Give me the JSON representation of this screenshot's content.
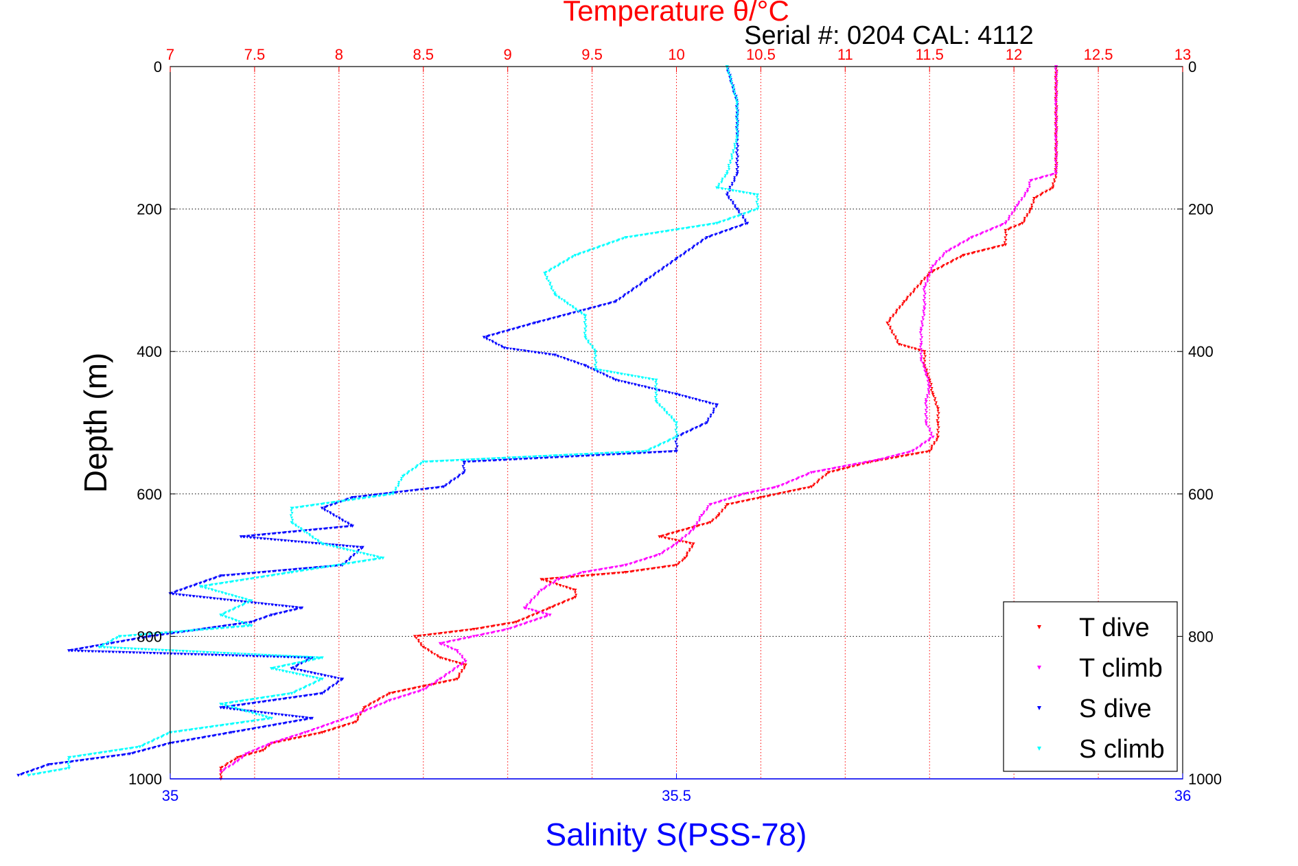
{
  "chart_data": {
    "type": "scatter",
    "title": "Temperature θ/°C",
    "subtitle": "Serial #: 0204  CAL: 4112",
    "xlabel_top": "Temperature θ/°C",
    "xlabel_bottom": "Salinity S(PSS-78)",
    "ylabel": "Depth (m)",
    "temperature_axis": {
      "range": [
        7,
        13
      ],
      "ticks": [
        "7",
        "7.5",
        "8",
        "8.5",
        "9",
        "9.5",
        "10",
        "10.5",
        "11",
        "11.5",
        "12",
        "12.5",
        "13"
      ],
      "color": "#ff0000"
    },
    "salinity_axis": {
      "range": [
        35,
        36
      ],
      "ticks": [
        "35",
        "35.5",
        "36"
      ],
      "color": "#0000ff"
    },
    "depth_axis": {
      "range": [
        0,
        1000
      ],
      "reversed": true,
      "ticks": [
        "0",
        "200",
        "400",
        "600",
        "800",
        "1000"
      ]
    },
    "grid": true,
    "legend_position": "bottom-right",
    "series": [
      {
        "name": "T dive",
        "axis": "temperature",
        "color": "#ff0000",
        "points": [
          [
            12.25,
            0
          ],
          [
            12.25,
            50
          ],
          [
            12.25,
            100
          ],
          [
            12.25,
            150
          ],
          [
            12.23,
            170
          ],
          [
            12.12,
            185
          ],
          [
            12.1,
            200
          ],
          [
            12.05,
            220
          ],
          [
            11.95,
            230
          ],
          [
            11.95,
            250
          ],
          [
            11.7,
            265
          ],
          [
            11.5,
            290
          ],
          [
            11.35,
            330
          ],
          [
            11.25,
            360
          ],
          [
            11.32,
            390
          ],
          [
            11.47,
            400
          ],
          [
            11.47,
            420
          ],
          [
            11.5,
            440
          ],
          [
            11.52,
            460
          ],
          [
            11.55,
            480
          ],
          [
            11.55,
            500
          ],
          [
            11.55,
            520
          ],
          [
            11.5,
            540
          ],
          [
            11.15,
            555
          ],
          [
            10.9,
            570
          ],
          [
            10.8,
            590
          ],
          [
            10.5,
            605
          ],
          [
            10.3,
            615
          ],
          [
            10.25,
            630
          ],
          [
            10.2,
            640
          ],
          [
            9.9,
            660
          ],
          [
            10.1,
            670
          ],
          [
            10.05,
            690
          ],
          [
            10.0,
            700
          ],
          [
            9.7,
            710
          ],
          [
            9.2,
            720
          ],
          [
            9.4,
            735
          ],
          [
            9.4,
            745
          ],
          [
            9.25,
            760
          ],
          [
            9.05,
            780
          ],
          [
            8.8,
            790
          ],
          [
            8.45,
            800
          ],
          [
            8.5,
            815
          ],
          [
            8.6,
            830
          ],
          [
            8.75,
            840
          ],
          [
            8.7,
            860
          ],
          [
            8.3,
            880
          ],
          [
            8.15,
            900
          ],
          [
            8.1,
            920
          ],
          [
            7.9,
            935
          ],
          [
            7.6,
            950
          ],
          [
            7.55,
            960
          ],
          [
            7.4,
            970
          ],
          [
            7.3,
            985
          ],
          [
            7.3,
            1000
          ]
        ]
      },
      {
        "name": "T climb",
        "axis": "temperature",
        "color": "#ff00ff",
        "points": [
          [
            12.25,
            0
          ],
          [
            12.25,
            50
          ],
          [
            12.25,
            100
          ],
          [
            12.25,
            150
          ],
          [
            12.1,
            160
          ],
          [
            12.08,
            175
          ],
          [
            12.02,
            195
          ],
          [
            11.95,
            220
          ],
          [
            11.75,
            240
          ],
          [
            11.6,
            260
          ],
          [
            11.52,
            280
          ],
          [
            11.47,
            310
          ],
          [
            11.47,
            340
          ],
          [
            11.45,
            370
          ],
          [
            11.45,
            390
          ],
          [
            11.45,
            410
          ],
          [
            11.48,
            430
          ],
          [
            11.5,
            450
          ],
          [
            11.48,
            470
          ],
          [
            11.48,
            500
          ],
          [
            11.52,
            520
          ],
          [
            11.4,
            540
          ],
          [
            11.2,
            552
          ],
          [
            10.8,
            570
          ],
          [
            10.6,
            590
          ],
          [
            10.4,
            600
          ],
          [
            10.2,
            615
          ],
          [
            10.15,
            630
          ],
          [
            10.1,
            650
          ],
          [
            10.0,
            670
          ],
          [
            9.9,
            685
          ],
          [
            9.7,
            700
          ],
          [
            9.45,
            710
          ],
          [
            9.3,
            720
          ],
          [
            9.2,
            735
          ],
          [
            9.1,
            760
          ],
          [
            9.25,
            770
          ],
          [
            9.0,
            790
          ],
          [
            8.8,
            800
          ],
          [
            8.6,
            810
          ],
          [
            8.7,
            820
          ],
          [
            8.75,
            835
          ],
          [
            8.6,
            860
          ],
          [
            8.5,
            875
          ],
          [
            8.3,
            890
          ],
          [
            8.1,
            910
          ],
          [
            7.8,
            935
          ],
          [
            7.6,
            950
          ],
          [
            7.45,
            965
          ],
          [
            7.4,
            975
          ],
          [
            7.3,
            990
          ]
        ]
      },
      {
        "name": "S dive",
        "axis": "salinity",
        "color": "#0000ff",
        "points": [
          [
            35.55,
            0
          ],
          [
            35.56,
            50
          ],
          [
            35.56,
            100
          ],
          [
            35.56,
            150
          ],
          [
            35.55,
            180
          ],
          [
            35.56,
            200
          ],
          [
            35.57,
            220
          ],
          [
            35.53,
            240
          ],
          [
            35.5,
            270
          ],
          [
            35.47,
            300
          ],
          [
            35.44,
            330
          ],
          [
            35.36,
            360
          ],
          [
            35.31,
            380
          ],
          [
            35.33,
            395
          ],
          [
            35.38,
            405
          ],
          [
            35.41,
            420
          ],
          [
            35.44,
            440
          ],
          [
            35.5,
            460
          ],
          [
            35.54,
            475
          ],
          [
            35.53,
            500
          ],
          [
            35.5,
            520
          ],
          [
            35.5,
            540
          ],
          [
            35.29,
            555
          ],
          [
            35.29,
            570
          ],
          [
            35.27,
            590
          ],
          [
            35.18,
            605
          ],
          [
            35.15,
            620
          ],
          [
            35.18,
            645
          ],
          [
            35.07,
            660
          ],
          [
            35.19,
            675
          ],
          [
            35.17,
            700
          ],
          [
            35.05,
            715
          ],
          [
            35.0,
            740
          ],
          [
            35.13,
            760
          ],
          [
            35.1,
            770
          ],
          [
            35.08,
            780
          ],
          [
            34.98,
            800
          ],
          [
            34.9,
            820
          ],
          [
            35.14,
            830
          ],
          [
            35.12,
            845
          ],
          [
            35.17,
            860
          ],
          [
            35.15,
            880
          ],
          [
            35.05,
            900
          ],
          [
            35.14,
            915
          ],
          [
            35.06,
            935
          ],
          [
            35.0,
            950
          ],
          [
            34.96,
            965
          ],
          [
            34.88,
            980
          ],
          [
            34.85,
            995
          ]
        ]
      },
      {
        "name": "S climb",
        "axis": "salinity",
        "color": "#00ffff",
        "points": [
          [
            35.55,
            0
          ],
          [
            35.56,
            50
          ],
          [
            35.56,
            100
          ],
          [
            35.55,
            150
          ],
          [
            35.54,
            170
          ],
          [
            35.58,
            180
          ],
          [
            35.58,
            200
          ],
          [
            35.54,
            220
          ],
          [
            35.45,
            240
          ],
          [
            35.4,
            265
          ],
          [
            35.37,
            290
          ],
          [
            35.38,
            320
          ],
          [
            35.41,
            350
          ],
          [
            35.41,
            380
          ],
          [
            35.42,
            400
          ],
          [
            35.42,
            425
          ],
          [
            35.48,
            440
          ],
          [
            35.48,
            470
          ],
          [
            35.5,
            500
          ],
          [
            35.5,
            520
          ],
          [
            35.47,
            540
          ],
          [
            35.25,
            555
          ],
          [
            35.23,
            575
          ],
          [
            35.22,
            600
          ],
          [
            35.12,
            620
          ],
          [
            35.12,
            640
          ],
          [
            35.15,
            670
          ],
          [
            35.21,
            690
          ],
          [
            35.12,
            710
          ],
          [
            35.03,
            730
          ],
          [
            35.08,
            750
          ],
          [
            35.05,
            770
          ],
          [
            35.08,
            785
          ],
          [
            34.95,
            800
          ],
          [
            34.93,
            815
          ],
          [
            35.15,
            830
          ],
          [
            35.1,
            845
          ],
          [
            35.15,
            860
          ],
          [
            35.12,
            880
          ],
          [
            35.05,
            895
          ],
          [
            35.1,
            915
          ],
          [
            35.0,
            935
          ],
          [
            34.97,
            955
          ],
          [
            34.9,
            970
          ],
          [
            34.9,
            985
          ],
          [
            34.86,
            995
          ]
        ]
      }
    ]
  }
}
